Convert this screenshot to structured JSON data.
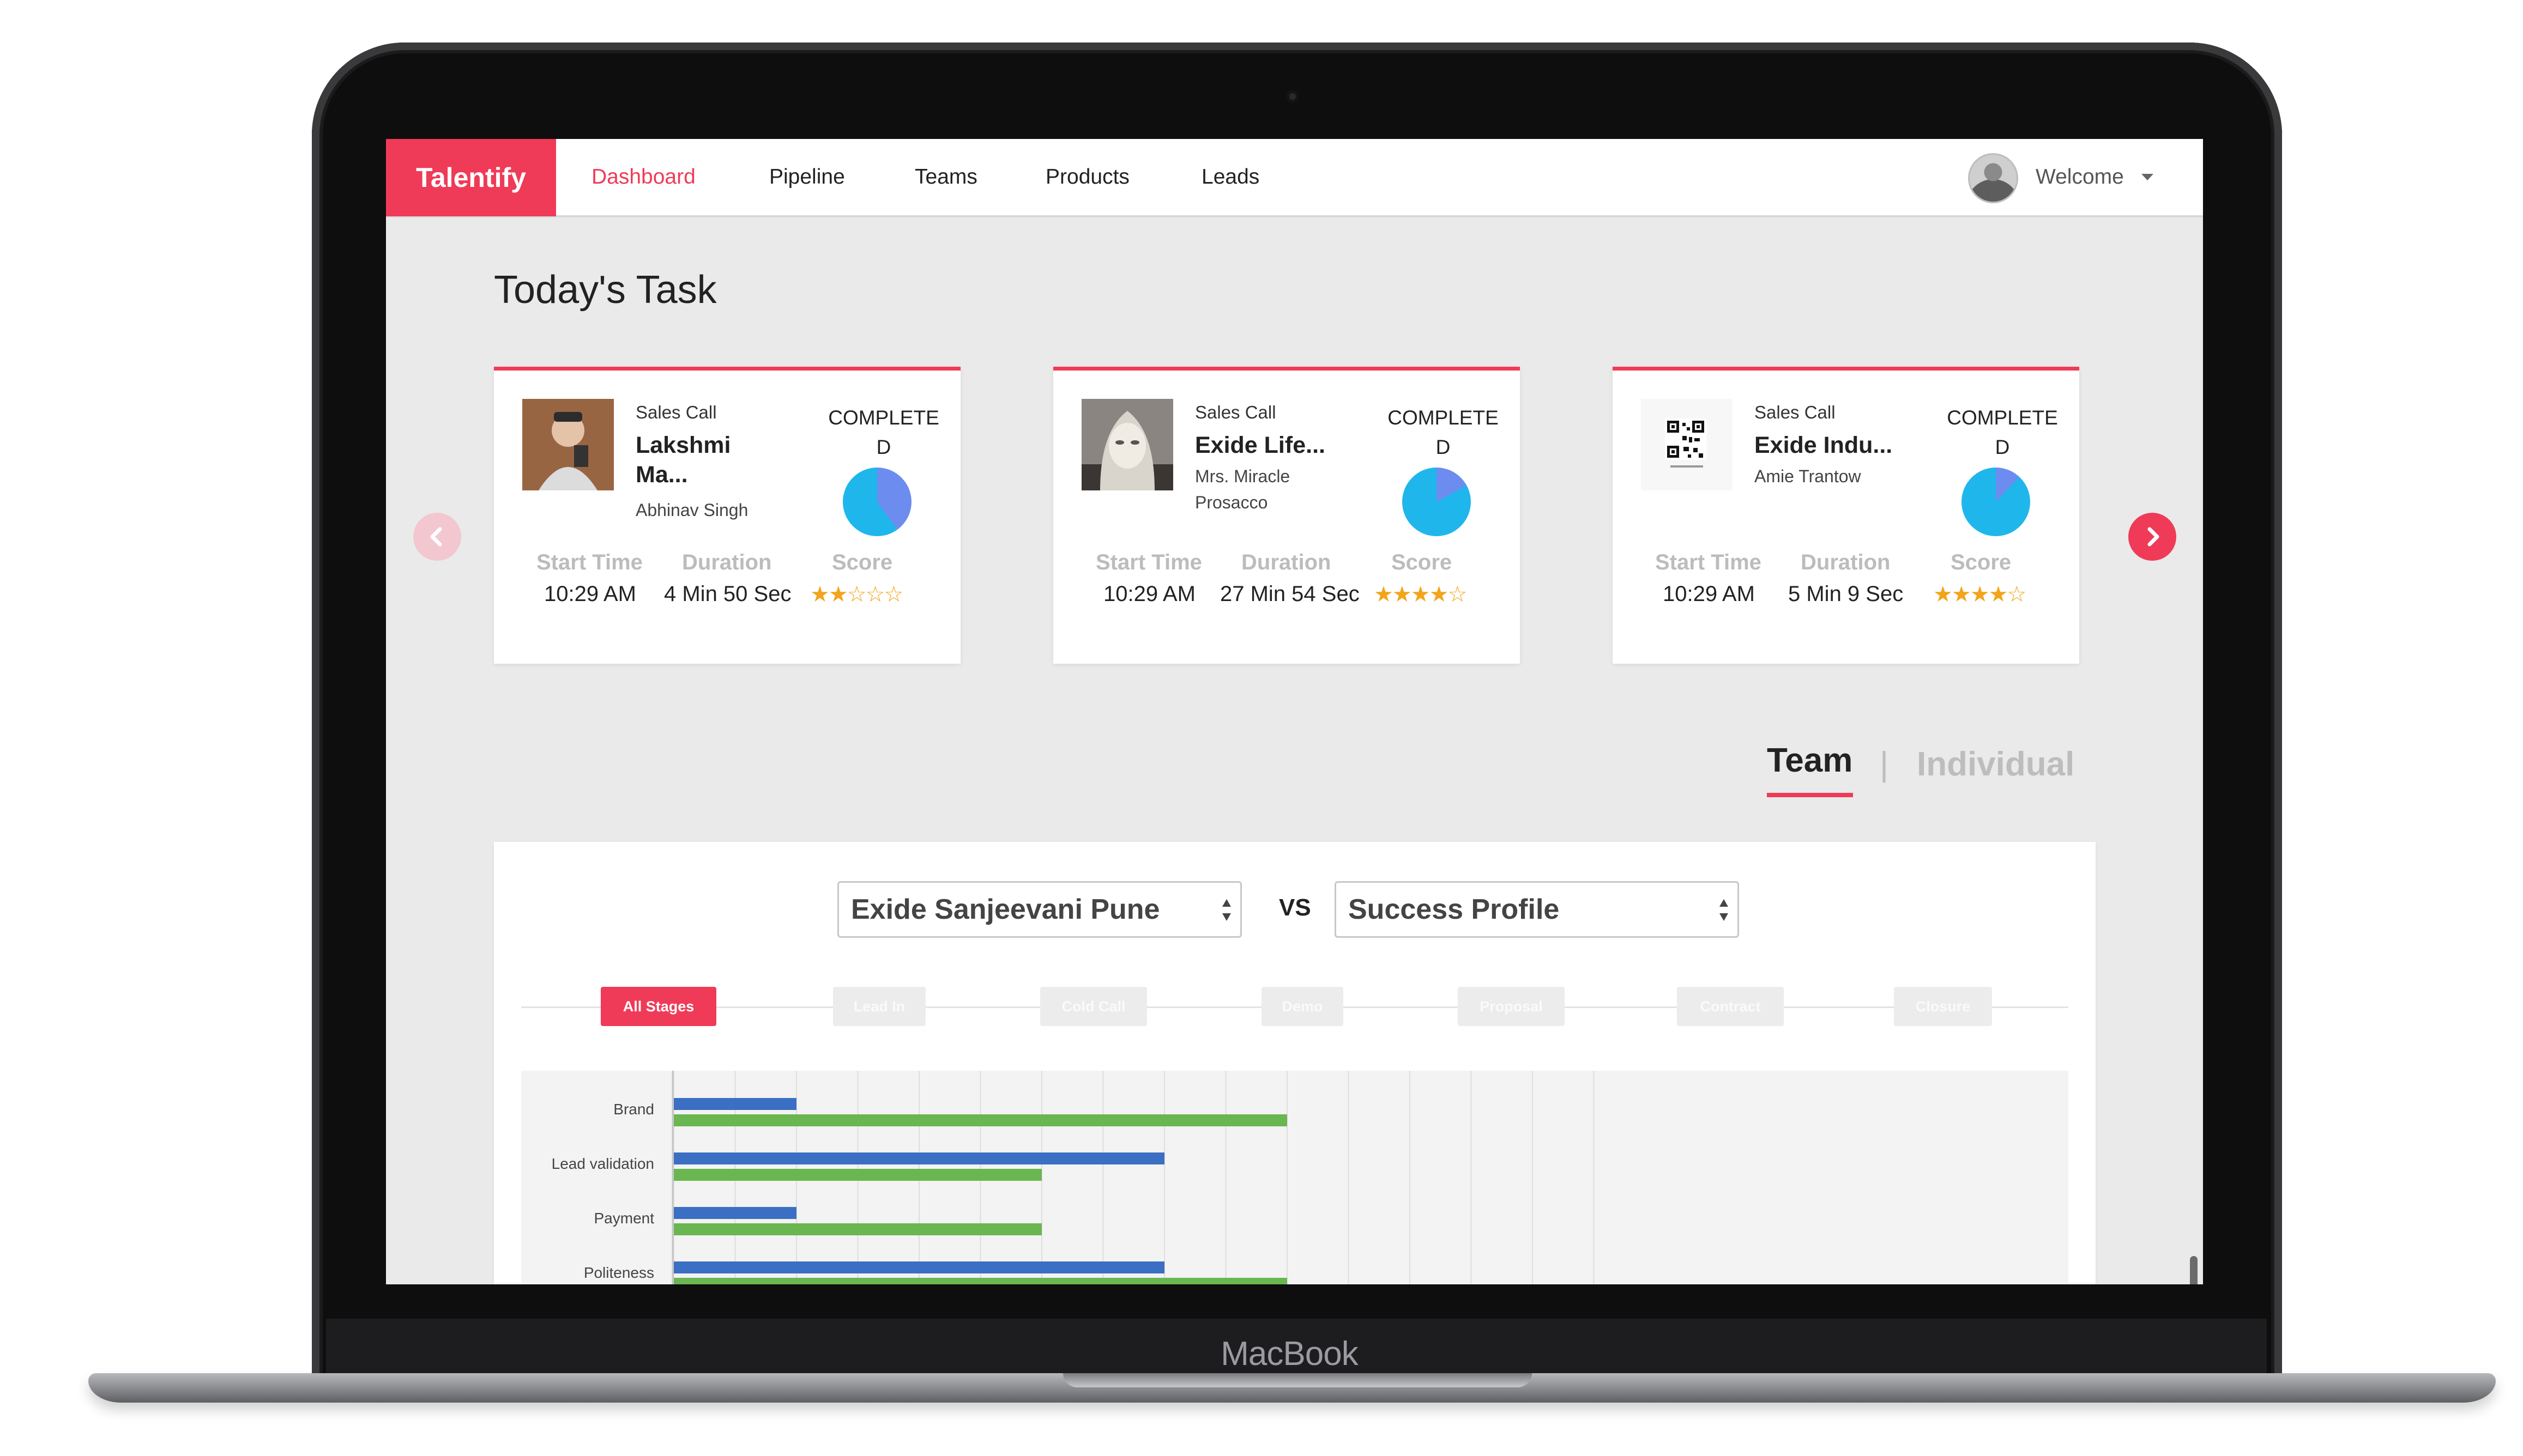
{
  "device": {
    "brand": "MacBook"
  },
  "nav": {
    "logo": "Talentify",
    "items": [
      "Dashboard",
      "Pipeline",
      "Teams",
      "Products",
      "Leads"
    ],
    "active": "Dashboard",
    "user_menu": "Welcome"
  },
  "page_title": "Today's Task",
  "labels": {
    "start_time": "Start Time",
    "duration": "Duration",
    "score": "Score"
  },
  "tasks": [
    {
      "type": "Sales Call",
      "name_line1": "Lakshmi",
      "name_line2": "Ma...",
      "contact_line1": "Abhinav Singh",
      "contact_line2": "",
      "status_line1": "COMPLETE",
      "status_line2": "D",
      "completion_percent": 40,
      "start_time": "10:29 AM",
      "duration": "4 Min 50 Sec",
      "score_stars": "★★☆☆☆",
      "score": 2
    },
    {
      "type": "Sales Call",
      "name_line1": "Exide Life...",
      "name_line2": "",
      "contact_line1": "Mrs. Miracle",
      "contact_line2": "Prosacco",
      "status_line1": "COMPLETE",
      "status_line2": "D",
      "completion_percent": 17,
      "start_time": "10:29 AM",
      "duration": "27 Min 54 Sec",
      "score_stars": "★★★★☆",
      "score": 4
    },
    {
      "type": "Sales Call",
      "name_line1": "Exide Indu...",
      "name_line2": "",
      "contact_line1": "Amie Trantow",
      "contact_line2": "",
      "status_line1": "COMPLETE",
      "status_line2": "D",
      "completion_percent": 12,
      "start_time": "10:29 AM",
      "duration": "5 Min 9 Sec",
      "score_stars": "★★★★☆",
      "score": 4
    }
  ],
  "view_tabs": {
    "team": "Team",
    "separator": "|",
    "individual": "Individual",
    "active": "Team"
  },
  "compare": {
    "left_select": "Exide Sanjeevani Pune",
    "vs": "VS",
    "right_select": "Success Profile"
  },
  "stages": [
    "All Stages",
    "Lead In",
    "Cold Call",
    "Demo",
    "Proposal",
    "Contract",
    "Closure"
  ],
  "active_stage": "All Stages",
  "colors": {
    "accent": "#ef3b57",
    "series_blue": "#3a6fc4",
    "series_green": "#6ab650",
    "pie_complete": "#6d8cf0",
    "pie_base": "#1fb6ec",
    "star": "#f2a51a"
  },
  "chart_data": {
    "type": "bar",
    "orientation": "horizontal",
    "categories": [
      "Brand",
      "Lead validation",
      "Payment",
      "Politeness"
    ],
    "series": [
      {
        "values": [
          2,
          8,
          2,
          8
        ]
      },
      {
        "values": [
          10,
          6,
          6,
          10
        ]
      }
    ],
    "xlim": [
      0,
      15
    ],
    "grid": true
  }
}
